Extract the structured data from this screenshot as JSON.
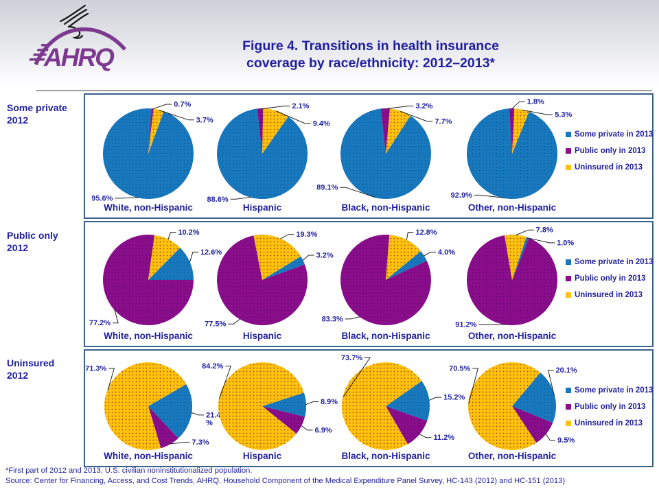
{
  "header": {
    "title_line1": "Figure 4. Transitions in health insurance",
    "title_line2": "coverage by race/ethnicity: 2012–2013*",
    "logo_text": "AHRQ"
  },
  "footer": {
    "note": "*First part of 2012 and 2013, U.S. civilian noninstitutionalized population.",
    "source": "Source: Center for Financing, Access, and Cost Trends, AHRQ, Household Component of the Medical Expenditure Panel Survey, HC-143 (2012) and HC-151 (2013)"
  },
  "colors": {
    "series": [
      "#1878be",
      "#8a0d8c",
      "#ffc20e"
    ],
    "series_dots": [
      "#0f5a94",
      "#650567",
      "#a04a00"
    ],
    "text_navy": "#1f1f9f",
    "box_border": "#38608a",
    "logo_purple": "#7b3a8e"
  },
  "legend": {
    "items": [
      {
        "label": "Some private in 2013",
        "color": "#1878be"
      },
      {
        "label": "Public only in 2013",
        "color": "#8a0d8c"
      },
      {
        "label": "Uninsured in 2013",
        "color": "#ffc20e"
      }
    ]
  },
  "chart_data": [
    {
      "type": "pie",
      "group_label": "Some private\n2012",
      "series_names": [
        "Some private in 2013",
        "Public only in 2013",
        "Uninsured in 2013"
      ],
      "units": "percent",
      "legend_position": "right",
      "pies": [
        {
          "category": "White, non-Hispanic",
          "values": [
            95.6,
            0.7,
            3.7
          ],
          "display_labels": [
            "95.6%",
            "0.7%",
            "3.7%"
          ],
          "rotation": 20,
          "label_angles": [
            212,
            20,
            50
          ]
        },
        {
          "category": "Hispanic",
          "values": [
            88.6,
            2.1,
            9.4
          ],
          "display_labels": [
            "88.6%",
            "2.1%",
            "9.4%"
          ],
          "rotation": 35,
          "label_angles": [
            210,
            25,
            55
          ]
        },
        {
          "category": "Black, non-Hispanic",
          "values": [
            89.1,
            3.2,
            7.7
          ],
          "display_labels": [
            "89.1%",
            "3.2%",
            "7.7%"
          ],
          "rotation": 33,
          "label_angles": [
            230,
            25,
            52
          ]
        },
        {
          "category": "Other, non-Hispanic",
          "values": [
            92.9,
            1.8,
            5.3
          ],
          "display_labels": [
            "92.9%",
            "1.8%",
            "5.3%"
          ],
          "rotation": 22,
          "label_angles": [
            218,
            8,
            42
          ]
        }
      ]
    },
    {
      "type": "pie",
      "group_label": "Public only\n2012",
      "series_names": [
        "Some private in 2013",
        "Public only in 2013",
        "Uninsured in 2013"
      ],
      "units": "percent",
      "legend_position": "right",
      "pies": [
        {
          "category": "White, non-Hispanic",
          "values": [
            12.6,
            77.2,
            10.2
          ],
          "display_labels": [
            "12.6%",
            "77.2%",
            "10.2%"
          ],
          "rotation": 44.6,
          "label_angles": [
            58,
            215,
            25
          ]
        },
        {
          "category": "Hispanic",
          "values": [
            3.2,
            77.5,
            19.3
          ],
          "display_labels": [
            "3.2%",
            "77.5%",
            "19.3%"
          ],
          "rotation": 58.5,
          "label_angles": [
            62,
            213,
            30
          ]
        },
        {
          "category": "Black, non-Hispanic",
          "values": [
            4.0,
            83.3,
            12.8
          ],
          "display_labels": [
            "4.0%",
            "83.3%",
            "12.8%"
          ],
          "rotation": 50.6,
          "label_angles": [
            58,
            222,
            25
          ]
        },
        {
          "category": "Other, non-Hispanic",
          "values": [
            1.0,
            91.2,
            7.8
          ],
          "display_labels": [
            "1.0%",
            "91.2%",
            "7.8%"
          ],
          "rotation": 18.4,
          "label_angles": [
            45,
            212,
            18
          ]
        }
      ]
    },
    {
      "type": "pie",
      "group_label": "Uninsured\n2012",
      "series_names": [
        "Some private in 2013",
        "Public only in 2013",
        "Uninsured in 2013"
      ],
      "units": "percent",
      "legend_position": "right",
      "pies": [
        {
          "category": "White, non-Hispanic",
          "values": [
            21.4,
            7.3,
            71.3
          ],
          "display_labels": [
            "21.4\n%",
            "7.3%",
            "71.3%"
          ],
          "rotation": 60,
          "label_angles": [
            100,
            135,
            318
          ]
        },
        {
          "category": "Hispanic",
          "values": [
            8.9,
            6.9,
            84.2
          ],
          "display_labels": [
            "8.9%",
            "6.9%",
            "84.2%"
          ],
          "rotation": 72,
          "label_angles": [
            85,
            118,
            322
          ]
        },
        {
          "category": "Black, non-Hispanic",
          "values": [
            15.2,
            11.2,
            73.7
          ],
          "display_labels": [
            "15.2%",
            "11.2%",
            "73.7%"
          ],
          "rotation": 55,
          "label_angles": [
            80,
            128,
            342
          ]
        },
        {
          "category": "Other, non-Hispanic",
          "values": [
            20.1,
            9.5,
            70.5
          ],
          "display_labels": [
            "20.1%",
            "9.5%",
            "70.5%"
          ],
          "rotation": 40,
          "label_angles": [
            45,
            132,
            318
          ]
        }
      ]
    }
  ]
}
